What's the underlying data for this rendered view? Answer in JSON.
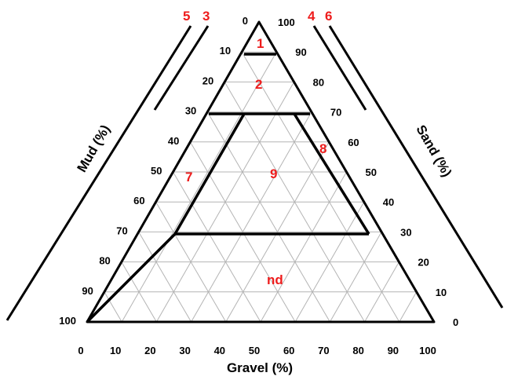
{
  "axes": {
    "mud_title": "Mud (%)",
    "sand_title": "Sand (%)",
    "gravel_title": "Gravel (%)",
    "left_ticks": [
      "0",
      "10",
      "20",
      "30",
      "40",
      "50",
      "60",
      "70",
      "80",
      "90",
      "100"
    ],
    "right_ticks": [
      "100",
      "90",
      "80",
      "70",
      "60",
      "50",
      "40",
      "30",
      "20",
      "10",
      "0"
    ],
    "bottom_ticks": [
      "0",
      "10",
      "20",
      "30",
      "40",
      "50",
      "60",
      "70",
      "80",
      "90",
      "100"
    ]
  },
  "regions": {
    "r1": "1",
    "r2": "2",
    "r3": "3",
    "r4": "4",
    "r5": "5",
    "r6": "6",
    "r7": "7",
    "r8": "8",
    "r9": "9",
    "nd": "nd"
  },
  "colors": {
    "label": "#ee1c1c",
    "grid": "#b4b4b4",
    "line": "#000000"
  }
}
